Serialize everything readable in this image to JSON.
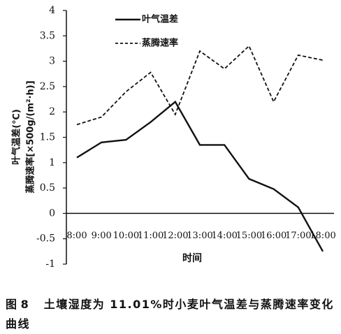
{
  "chart_data": {
    "type": "line",
    "categories": [
      "8:00",
      "9:00",
      "10:00",
      "11:00",
      "12:00",
      "13:00",
      "14:00",
      "15:00",
      "16:00",
      "17:00",
      "18:00"
    ],
    "series": [
      {
        "name": "叶气温差",
        "color": "#111111",
        "dash": "solid",
        "values": [
          1.1,
          1.4,
          1.45,
          1.8,
          2.2,
          1.35,
          1.35,
          0.68,
          0.48,
          0.12,
          -0.75
        ]
      },
      {
        "name": "蒸腾速率",
        "color": "#111111",
        "dash": "dashed",
        "values": [
          1.75,
          1.9,
          2.4,
          2.78,
          1.95,
          3.2,
          2.85,
          3.3,
          2.2,
          3.12,
          3.02
        ]
      }
    ],
    "ylim": [
      -1,
      4
    ],
    "yticks": [
      -1,
      -0.5,
      0,
      0.5,
      1,
      1.5,
      2,
      2.5,
      3,
      3.5,
      4
    ],
    "ylabel_lines": [
      "叶气温差(℃)",
      "蒸腾速率[×500g/(m²·h)]"
    ],
    "xlabel": "时间",
    "legend": "top-left",
    "grid": false
  },
  "caption": {
    "figure": "图 8",
    "text": "土壤湿度为 11.01%时小麦叶气温差与蒸腾速率变化曲线"
  }
}
